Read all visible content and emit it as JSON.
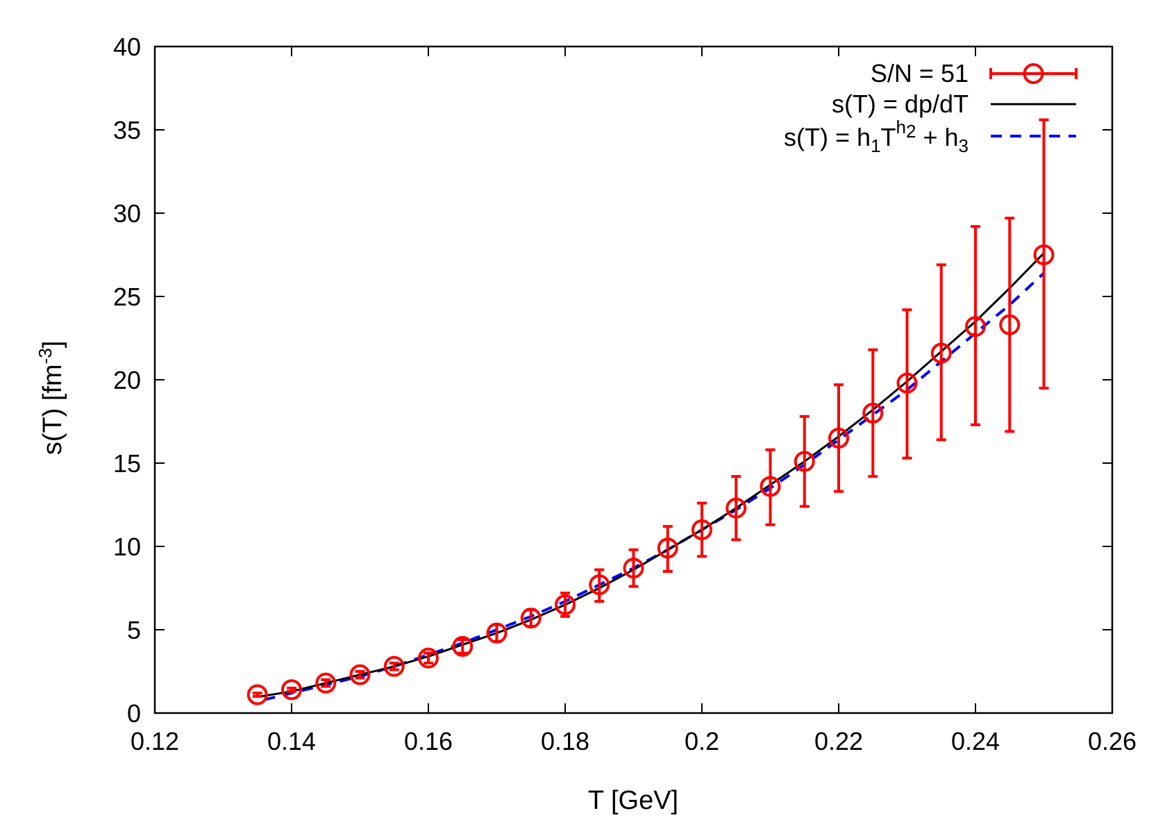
{
  "chart_data": {
    "type": "scatter",
    "xlabel": "T [GeV]",
    "ylabel": {
      "prefix": "s(T) [fm",
      "sup": "-3",
      "suffix": "]"
    },
    "xlim": [
      0.12,
      0.26
    ],
    "ylim": [
      0,
      40
    ],
    "xticks": [
      0.12,
      0.14,
      0.16,
      0.18,
      0.2,
      0.22,
      0.24,
      0.26
    ],
    "xtick_labels": [
      "0.12",
      "0.14",
      "0.16",
      "0.18",
      "0.2",
      "0.22",
      "0.24",
      "0.26"
    ],
    "yticks": [
      0,
      5,
      10,
      15,
      20,
      25,
      30,
      35,
      40
    ],
    "ytick_labels": [
      "0",
      "5",
      "10",
      "15",
      "20",
      "25",
      "30",
      "35",
      "40"
    ],
    "grid": false,
    "legend_position": "top-right",
    "series": [
      {
        "name": "S/N = 51",
        "kind": "points-with-errorbars",
        "color": "#ff0000",
        "x": [
          0.135,
          0.14,
          0.145,
          0.15,
          0.155,
          0.16,
          0.165,
          0.17,
          0.175,
          0.18,
          0.185,
          0.19,
          0.195,
          0.2,
          0.205,
          0.21,
          0.215,
          0.22,
          0.225,
          0.23,
          0.235,
          0.24,
          0.245,
          0.25
        ],
        "y": [
          1.1,
          1.4,
          1.8,
          2.3,
          2.8,
          3.3,
          4.0,
          4.8,
          5.7,
          6.5,
          7.7,
          8.7,
          9.9,
          11.0,
          12.3,
          13.6,
          15.1,
          16.5,
          18.0,
          19.8,
          21.6,
          23.2,
          23.3,
          27.5
        ],
        "yerr_low": [
          0.1,
          0.1,
          0.2,
          0.2,
          0.2,
          0.3,
          0.4,
          0.5,
          0.5,
          0.7,
          1.0,
          1.1,
          1.4,
          1.6,
          1.9,
          2.3,
          2.7,
          3.2,
          3.8,
          4.5,
          5.2,
          5.9,
          6.4,
          8.0
        ],
        "yerr_high": [
          0.1,
          0.1,
          0.2,
          0.2,
          0.2,
          0.3,
          0.4,
          0.5,
          0.5,
          0.7,
          0.9,
          1.1,
          1.3,
          1.6,
          1.9,
          2.2,
          2.7,
          3.2,
          3.8,
          4.4,
          5.3,
          6.0,
          6.4,
          8.1
        ]
      },
      {
        "name": "s(T) = dp/dT",
        "kind": "line",
        "color": "#000000",
        "x": [
          0.1355,
          0.14,
          0.145,
          0.15,
          0.155,
          0.16,
          0.165,
          0.17,
          0.175,
          0.18,
          0.185,
          0.19,
          0.195,
          0.2,
          0.205,
          0.21,
          0.215,
          0.22,
          0.225,
          0.23,
          0.235,
          0.24,
          0.245,
          0.25
        ],
        "y": [
          1.0,
          1.3,
          1.8,
          2.3,
          2.8,
          3.4,
          4.1,
          4.8,
          5.6,
          6.5,
          7.5,
          8.6,
          9.8,
          11.0,
          12.3,
          13.7,
          15.1,
          16.6,
          18.2,
          19.9,
          21.7,
          23.5,
          25.5,
          27.6
        ]
      },
      {
        "name": {
          "p1": "s(T) = h",
          "s1": "1",
          "p2": "T",
          "sup": "h",
          "supsub": "2",
          "p3": " + h",
          "s3": "3"
        },
        "kind": "dashed-line",
        "color": "#0000ff",
        "x": [
          0.136,
          0.14,
          0.145,
          0.15,
          0.155,
          0.16,
          0.165,
          0.17,
          0.175,
          0.18,
          0.185,
          0.19,
          0.195,
          0.2,
          0.205,
          0.21,
          0.215,
          0.22,
          0.225,
          0.23,
          0.235,
          0.24,
          0.245,
          0.25
        ],
        "y": [
          0.8,
          1.2,
          1.7,
          2.2,
          2.8,
          3.5,
          4.2,
          5.0,
          5.8,
          6.7,
          7.7,
          8.7,
          9.8,
          11.0,
          12.2,
          13.5,
          14.9,
          16.4,
          17.9,
          19.4,
          21.1,
          22.8,
          24.5,
          26.4
        ]
      }
    ]
  }
}
